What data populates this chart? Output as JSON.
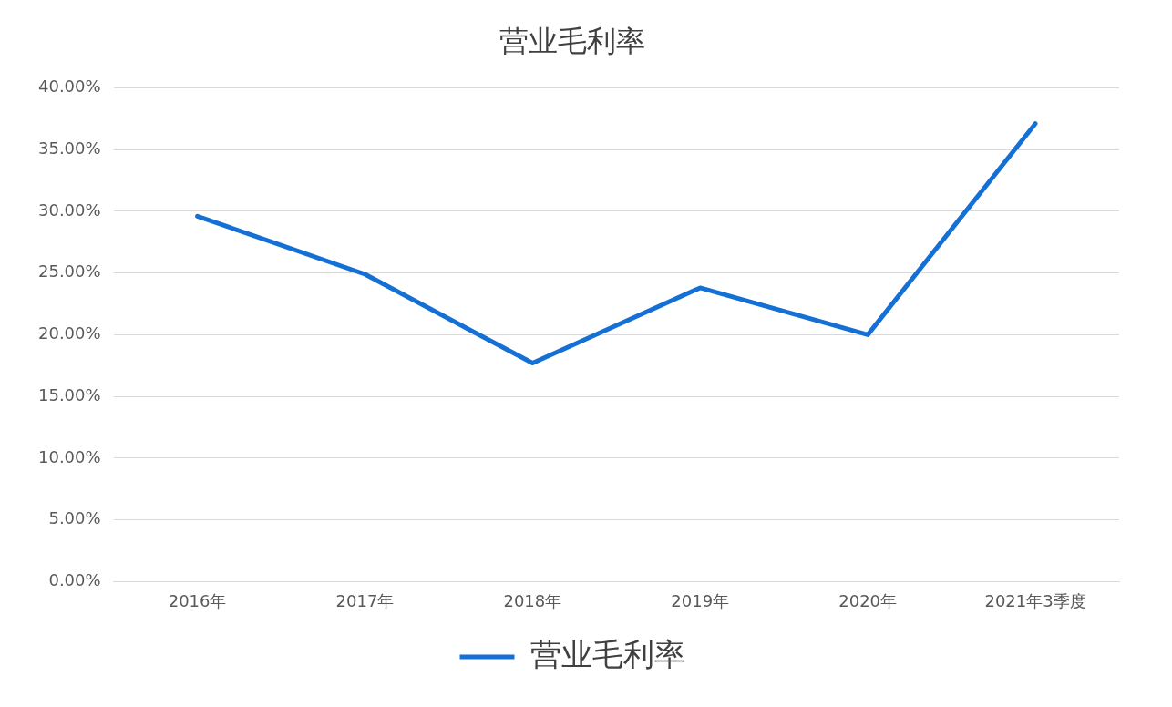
{
  "chart_data": {
    "type": "line",
    "title": "营业毛利率",
    "categories": [
      "2016年",
      "2017年",
      "2018年",
      "2019年",
      "2020年",
      "2021年3季度"
    ],
    "series": [
      {
        "name": "营业毛利率",
        "color": "#1470d4",
        "values": [
          29.6,
          24.9,
          17.7,
          23.8,
          20.0,
          37.1
        ]
      }
    ],
    "ylim": [
      0,
      40
    ],
    "yticks": [
      {
        "value": 0,
        "label": "0.00%"
      },
      {
        "value": 5,
        "label": "5.00%"
      },
      {
        "value": 10,
        "label": "10.00%"
      },
      {
        "value": 15,
        "label": "15.00%"
      },
      {
        "value": 20,
        "label": "20.00%"
      },
      {
        "value": 25,
        "label": "25.00%"
      },
      {
        "value": 30,
        "label": "30.00%"
      },
      {
        "value": 35,
        "label": "35.00%"
      },
      {
        "value": 40,
        "label": "40.00%"
      }
    ],
    "grid": "y",
    "legend": "bottom",
    "marker": "none",
    "line_style": "solid"
  }
}
